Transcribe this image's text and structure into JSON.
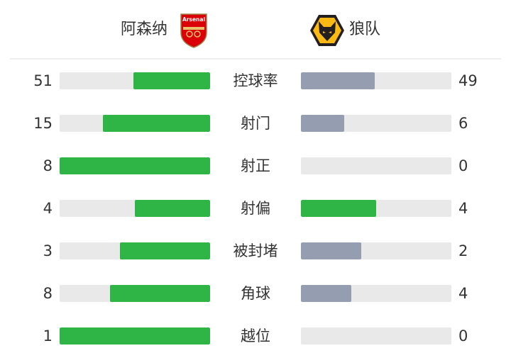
{
  "header": {
    "home": {
      "name": "阿森纳",
      "logo_text": "Arsenal",
      "logo_icon": "arsenal-crest"
    },
    "away": {
      "name": "狼队",
      "logo_icon": "wolves-crest"
    }
  },
  "colors": {
    "leader": "#2fb546",
    "trailer": "#959eb0",
    "track": "#e9e9e9"
  },
  "stats": [
    {
      "label": "控球率",
      "home": 51,
      "away": 49
    },
    {
      "label": "射门",
      "home": 15,
      "away": 6
    },
    {
      "label": "射正",
      "home": 8,
      "away": 0
    },
    {
      "label": "射偏",
      "home": 4,
      "away": 4
    },
    {
      "label": "被封堵",
      "home": 3,
      "away": 2
    },
    {
      "label": "角球",
      "home": 8,
      "away": 4
    },
    {
      "label": "越位",
      "home": 1,
      "away": 0
    }
  ]
}
